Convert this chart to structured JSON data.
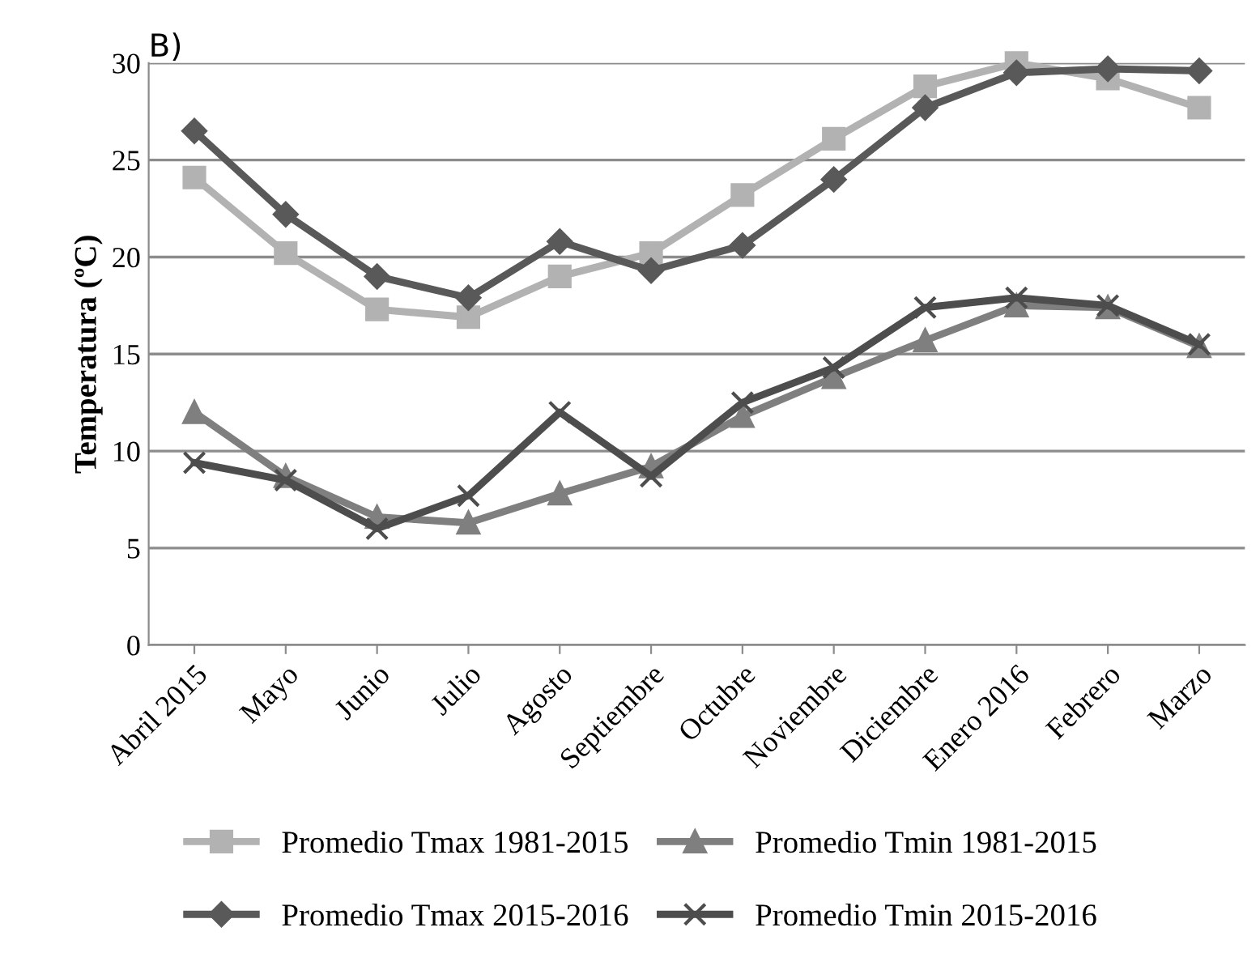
{
  "chart_data": {
    "type": "line",
    "title": "B)",
    "ylabel": "Temperatura (ºC)",
    "categories": [
      "Abril 2015",
      "Mayo",
      "Junio",
      "Julio",
      "Agosto",
      "Septiembre",
      "Octubre",
      "Noviembre",
      "Diciembre",
      "Enero 2016",
      "Febrero",
      "Marzo"
    ],
    "series": [
      {
        "name": "Promedio Tmax 1981-2015",
        "color": "#b2b2b2",
        "marker": "square",
        "values": [
          24.1,
          20.2,
          17.3,
          16.9,
          19.0,
          20.2,
          23.2,
          26.1,
          28.8,
          30.0,
          29.2,
          27.7
        ]
      },
      {
        "name": "Promedio Tmax 2015-2016",
        "color": "#595959",
        "marker": "diamond",
        "values": [
          26.5,
          22.2,
          19.0,
          17.9,
          20.8,
          19.3,
          20.6,
          24.0,
          27.7,
          29.5,
          29.7,
          29.6
        ]
      },
      {
        "name": "Promedio Tmin 1981-2015",
        "color": "#7f7f7f",
        "marker": "triangle",
        "values": [
          12.0,
          8.7,
          6.6,
          6.3,
          7.8,
          9.2,
          11.8,
          13.8,
          15.7,
          17.5,
          17.4,
          15.4
        ]
      },
      {
        "name": "Promedio Tmin 2015-2016",
        "color": "#4d4d4d",
        "marker": "cross",
        "values": [
          9.4,
          8.5,
          6.0,
          7.7,
          12.0,
          8.7,
          12.5,
          14.3,
          17.4,
          17.9,
          17.5,
          15.5
        ]
      }
    ],
    "ylim": [
      0,
      30
    ],
    "yticks": [
      0,
      5,
      10,
      15,
      20,
      25,
      30
    ],
    "grid": "y",
    "legend": "bottom"
  }
}
